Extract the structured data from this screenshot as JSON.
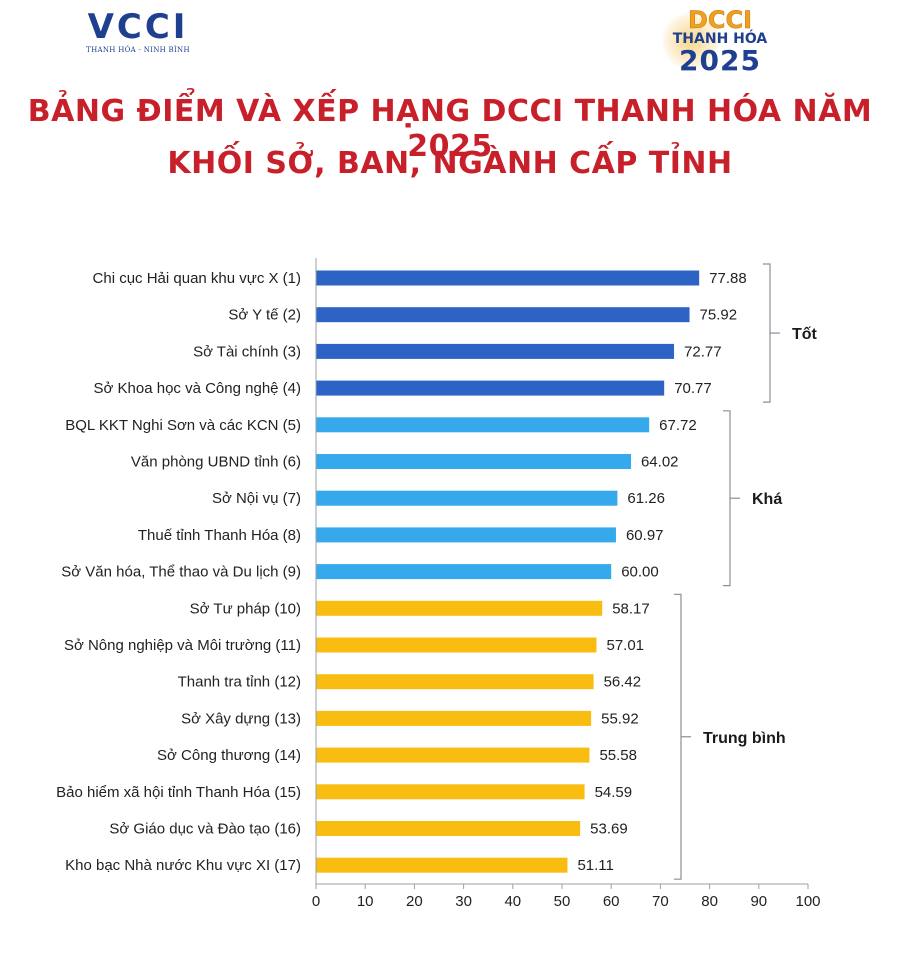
{
  "header": {
    "logo_left": {
      "mark": "VCCI",
      "subtitle": "THANH HÓA - NINH BÌNH"
    },
    "logo_right": {
      "line1": "DCCI",
      "line2": "THANH HÓA",
      "line3": "2025"
    },
    "title_line1": "BẢNG ĐIỂM VÀ XẾP HẠNG DCCI THANH HÓA NĂM 2025",
    "title_line2": "KHỐI SỞ, BAN, NGÀNH CẤP TỈNH"
  },
  "chart_data": {
    "type": "bar",
    "orientation": "horizontal",
    "title": "BẢNG ĐIỂM VÀ XẾP HẠNG DCCI THANH HÓA NĂM 2025 KHỐI SỞ, BAN, NGÀNH CẤP TỈNH",
    "xlabel": "",
    "ylabel": "",
    "xlim": [
      0,
      100
    ],
    "xticks": [
      "0",
      "10",
      "20",
      "30",
      "40",
      "50",
      "60",
      "70",
      "80",
      "90",
      "100"
    ],
    "grid": false,
    "categories": [
      "Chi cục Hải quan khu vực X (1)",
      "Sở Y tế (2)",
      "Sở Tài chính (3)",
      "Sở Khoa học và Công nghệ (4)",
      "BQL KKT Nghi Sơn và các KCN (5)",
      "Văn phòng UBND tỉnh (6)",
      "Sở Nội vụ (7)",
      "Thuế tỉnh Thanh Hóa (8)",
      "Sở Văn hóa, Thể thao và Du lịch (9)",
      "Sở Tư pháp (10)",
      "Sở Nông nghiệp và Môi trường (11)",
      "Thanh tra tỉnh (12)",
      "Sở Xây dựng (13)",
      "Sở Công thương (14)",
      "Bảo hiểm xã hội tỉnh Thanh Hóa  (15)",
      "Sở Giáo dục và Đào tạo (16)",
      "Kho bạc Nhà nước Khu vực XI (17)"
    ],
    "values": [
      77.88,
      75.92,
      72.77,
      70.77,
      67.72,
      64.02,
      61.26,
      60.97,
      60.0,
      58.17,
      57.01,
      56.42,
      55.92,
      55.58,
      54.59,
      53.69,
      51.11
    ],
    "value_labels": [
      "77.88",
      "75.92",
      "72.77",
      "70.77",
      "67.72",
      "64.02",
      "61.26",
      "60.97",
      "60.00",
      "58.17",
      "57.01",
      "56.42",
      "55.92",
      "55.58",
      "54.59",
      "53.69",
      "51.11"
    ],
    "groups": [
      {
        "label": "Tốt",
        "start": 0,
        "end": 3,
        "color": "#2e63c6"
      },
      {
        "label": "Khá",
        "start": 4,
        "end": 8,
        "color": "#35a9ec"
      },
      {
        "label": "Trung bình",
        "start": 9,
        "end": 16,
        "color": "#f9bd12"
      }
    ]
  }
}
